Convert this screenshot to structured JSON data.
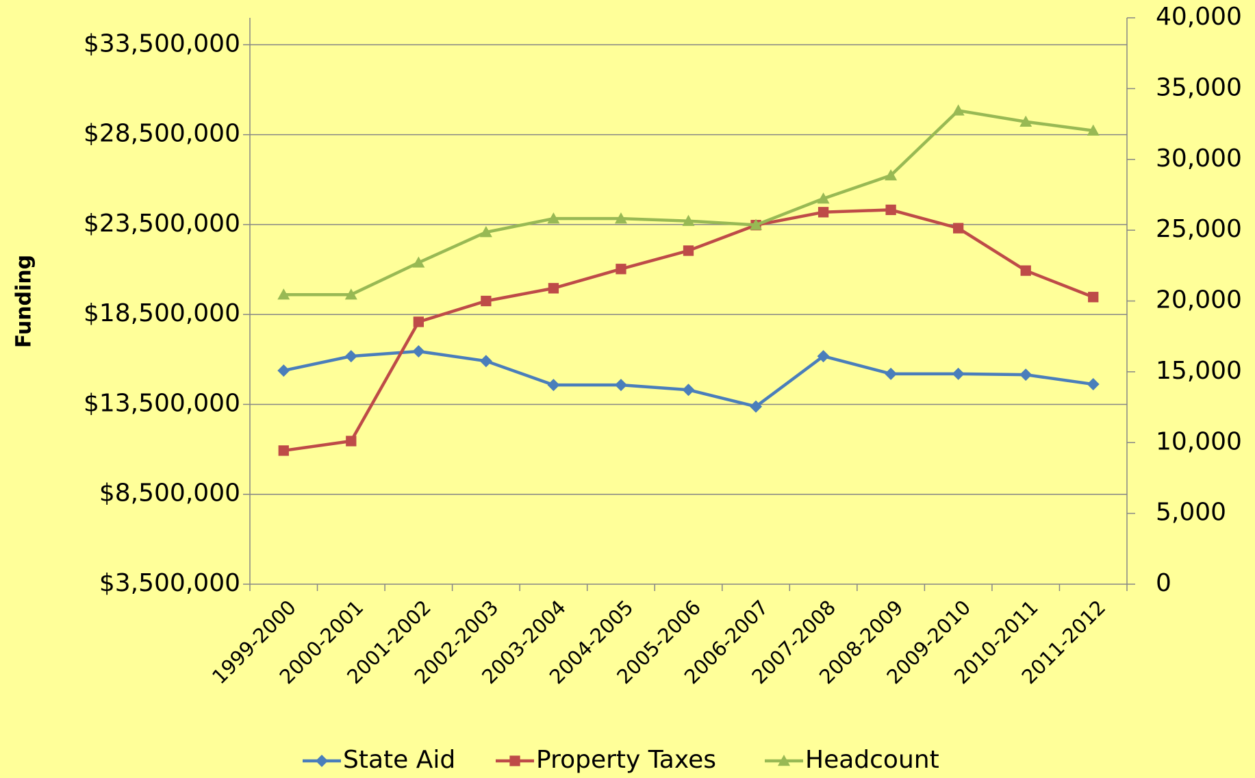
{
  "chart_data": {
    "type": "line",
    "y_label": "Funding",
    "categories": [
      "1999-2000",
      "2000-2001",
      "2001-2002",
      "2002-2003",
      "2003-2004",
      "2004-2005",
      "2005-2006",
      "2006-2007",
      "2007-2008",
      "2008-2009",
      "2009-2010",
      "2010-2011",
      "2011-2012"
    ],
    "series": [
      {
        "name": "State Aid",
        "color": "#4a7ebb",
        "marker": "diamond",
        "values": [
          15380000,
          16180000,
          16450000,
          15910000,
          14580000,
          14580000,
          14310000,
          13380000,
          16180000,
          15200000,
          15200000,
          15150000,
          14620000
        ]
      },
      {
        "name": "Property Taxes",
        "color": "#be4b48",
        "marker": "square",
        "values": [
          10930000,
          11460000,
          18090000,
          19250000,
          19960000,
          21030000,
          22050000,
          23470000,
          24190000,
          24320000,
          23300000,
          20940000,
          19470000
        ]
      },
      {
        "name": "Headcount",
        "color": "#98b954",
        "marker": "triangle",
        "axis": "y2",
        "values": [
          20450,
          20450,
          22710,
          24860,
          25820,
          25820,
          25650,
          25370,
          27230,
          28870,
          33450,
          32660,
          32030
        ]
      }
    ],
    "ylim": [
      3500000,
      35000000
    ],
    "yticks": [
      {
        "value": 3500000,
        "label": "$3,500,000"
      },
      {
        "value": 8500000,
        "label": "$8,500,000"
      },
      {
        "value": 13500000,
        "label": "$13,500,000"
      },
      {
        "value": 18500000,
        "label": "$18,500,000"
      },
      {
        "value": 23500000,
        "label": "$23,500,000"
      },
      {
        "value": 28500000,
        "label": "$28,500,000"
      },
      {
        "value": 33500000,
        "label": "$33,500,000"
      }
    ],
    "y2lim": [
      0,
      40000
    ],
    "y2ticks": [
      0,
      {
        "value": 5000,
        "label": "5,000"
      },
      {
        "value": 10000,
        "label": "10,000"
      },
      {
        "value": 15000,
        "label": "15,000"
      },
      {
        "value": 20000,
        "label": "20,000"
      },
      {
        "value": 25000,
        "label": "25,000"
      },
      {
        "value": 30000,
        "label": "30,000"
      },
      {
        "value": 35000,
        "label": "35,000"
      },
      {
        "value": 40000,
        "label": "40,000"
      }
    ],
    "grid": true,
    "legend": "bottom"
  }
}
